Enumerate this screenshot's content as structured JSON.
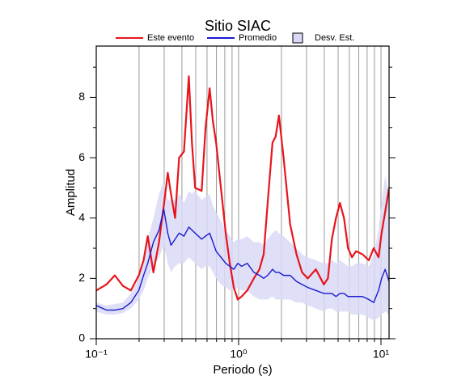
{
  "chart_data": {
    "type": "line",
    "title": "Sitio SIAC",
    "xlabel": "Periodo (s)",
    "ylabel": "Amplitud",
    "xscale": "log",
    "xlim": [
      0.1,
      11.4
    ],
    "ylim": [
      0,
      9.7
    ],
    "xticks": [
      {
        "value": 0.1,
        "label": "10⁻¹"
      },
      {
        "value": 1,
        "label": "10⁰"
      },
      {
        "value": 10,
        "label": "10¹"
      }
    ],
    "xminor": [
      0.2,
      0.3,
      0.4,
      0.5,
      0.6,
      0.7,
      0.8,
      0.9,
      2,
      3,
      4,
      5,
      6,
      7,
      8,
      9
    ],
    "yticks": [
      0,
      2,
      4,
      6,
      8
    ],
    "yminor": [
      1,
      3,
      5,
      7,
      9
    ],
    "grid": true,
    "legend": "top",
    "x": [
      0.1,
      0.118,
      0.135,
      0.154,
      0.175,
      0.199,
      0.215,
      0.23,
      0.252,
      0.276,
      0.298,
      0.318,
      0.335,
      0.358,
      0.382,
      0.413,
      0.447,
      0.47,
      0.495,
      0.55,
      0.586,
      0.626,
      0.66,
      0.695,
      0.751,
      0.812,
      0.867,
      0.925,
      0.987,
      1.05,
      1.15,
      1.28,
      1.4,
      1.5,
      1.6,
      1.73,
      1.82,
      1.92,
      2.07,
      2.3,
      2.55,
      2.79,
      3.06,
      3.49,
      3.97,
      4.24,
      4.52,
      4.83,
      5.15,
      5.5,
      5.87,
      6.26,
      6.68,
      7.41,
      8.22,
      8.89,
      9.62,
      10.1,
      10.7,
      11.4
    ],
    "band": {
      "name": "Desv. Est.",
      "color": "#d9d9f7",
      "upper": [
        1.2,
        1.1,
        1.15,
        1.2,
        1.5,
        2.0,
        2.6,
        3.3,
        4.0,
        4.8,
        5.2,
        4.6,
        4.6,
        4.6,
        4.8,
        4.5,
        4.9,
        4.8,
        4.9,
        4.6,
        4.7,
        4.8,
        4.4,
        4.2,
        3.9,
        3.6,
        3.4,
        3.2,
        3.3,
        3.3,
        3.4,
        3.2,
        3.2,
        3.1,
        3.3,
        3.5,
        3.6,
        3.5,
        3.4,
        3.2,
        3.0,
        2.8,
        2.7,
        2.6,
        2.5,
        2.5,
        2.6,
        2.5,
        2.6,
        2.5,
        2.4,
        2.4,
        2.5,
        2.5,
        2.4,
        2.8,
        3.6,
        4.5,
        5.4,
        4.8
      ],
      "lower": [
        0.9,
        0.8,
        0.8,
        0.85,
        1.0,
        1.3,
        1.6,
        2.0,
        2.4,
        2.7,
        3.1,
        2.5,
        2.2,
        2.4,
        2.5,
        2.5,
        2.7,
        2.6,
        2.5,
        2.3,
        2.4,
        2.4,
        2.2,
        2.0,
        1.8,
        1.7,
        1.6,
        1.6,
        1.7,
        1.6,
        1.6,
        1.4,
        1.3,
        1.3,
        1.3,
        1.4,
        1.3,
        1.3,
        1.3,
        1.3,
        1.2,
        1.2,
        1.1,
        1.0,
        0.9,
        1.0,
        1.0,
        0.9,
        0.9,
        0.9,
        0.9,
        0.8,
        0.8,
        0.8,
        0.7,
        0.6,
        0.7,
        0.8,
        0.9,
        0.8
      ]
    },
    "series": [
      {
        "name": "Este evento",
        "color": "#e8141c",
        "values": [
          1.6,
          1.8,
          2.1,
          1.75,
          1.6,
          2.1,
          2.6,
          3.4,
          2.2,
          3.2,
          4.4,
          5.5,
          4.8,
          4.0,
          6.0,
          6.2,
          8.7,
          6.5,
          5.0,
          4.9,
          7.0,
          8.3,
          7.2,
          6.5,
          5.0,
          3.5,
          2.5,
          1.7,
          1.3,
          1.4,
          1.6,
          2.0,
          2.3,
          2.8,
          4.5,
          6.5,
          6.7,
          7.4,
          6.0,
          3.8,
          2.8,
          2.2,
          2.0,
          2.3,
          1.8,
          2.0,
          3.3,
          4.0,
          4.5,
          4.0,
          3.0,
          2.7,
          2.9,
          2.8,
          2.6,
          3.0,
          2.7,
          3.5,
          4.2,
          5.0
        ]
      },
      {
        "name": "Promedio",
        "color": "#1a1ad0",
        "values": [
          1.1,
          0.95,
          0.95,
          1.0,
          1.2,
          1.6,
          2.1,
          2.5,
          3.2,
          3.6,
          4.3,
          3.5,
          3.1,
          3.3,
          3.5,
          3.4,
          3.7,
          3.6,
          3.5,
          3.3,
          3.4,
          3.5,
          3.2,
          2.9,
          2.7,
          2.5,
          2.4,
          2.3,
          2.5,
          2.4,
          2.5,
          2.2,
          2.1,
          2.0,
          2.1,
          2.3,
          2.2,
          2.2,
          2.1,
          2.1,
          1.9,
          1.8,
          1.7,
          1.6,
          1.5,
          1.5,
          1.5,
          1.4,
          1.5,
          1.5,
          1.4,
          1.4,
          1.4,
          1.4,
          1.3,
          1.2,
          1.6,
          2.0,
          2.3,
          1.9
        ]
      }
    ]
  }
}
